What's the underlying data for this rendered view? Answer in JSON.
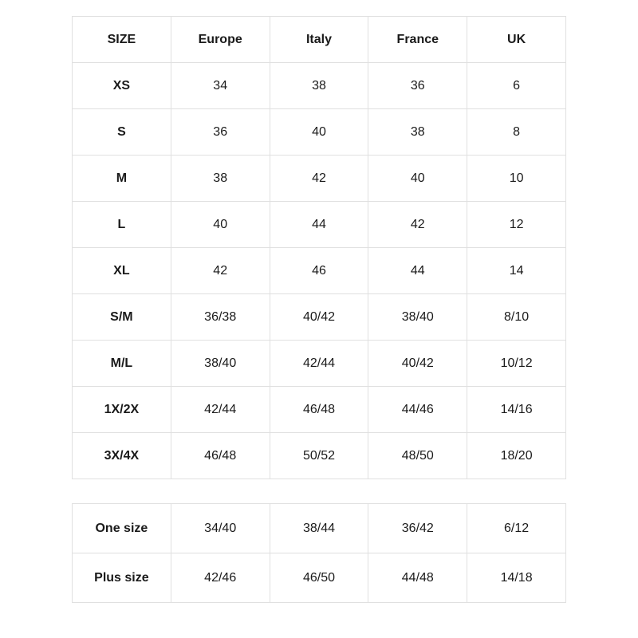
{
  "main_table": {
    "type": "table",
    "columns": [
      "SIZE",
      "Europe",
      "Italy",
      "France",
      "UK"
    ],
    "rows": [
      [
        "XS",
        "34",
        "38",
        "36",
        "6"
      ],
      [
        "S",
        "36",
        "40",
        "38",
        "8"
      ],
      [
        "M",
        "38",
        "42",
        "40",
        "10"
      ],
      [
        "L",
        "40",
        "44",
        "42",
        "12"
      ],
      [
        "XL",
        "42",
        "46",
        "44",
        "14"
      ],
      [
        "S/M",
        "36/38",
        "40/42",
        "38/40",
        "8/10"
      ],
      [
        "M/L",
        "38/40",
        "42/44",
        "40/42",
        "10/12"
      ],
      [
        "1X/2X",
        "42/44",
        "46/48",
        "44/46",
        "14/16"
      ],
      [
        "3X/4X",
        "46/48",
        "50/52",
        "48/50",
        "18/20"
      ]
    ],
    "border_color": "#e0e0e0",
    "background_color": "#ffffff",
    "text_color": "#1a1a1a",
    "font_size": 16,
    "header_font_weight": 700,
    "first_col_font_weight": 700,
    "num_columns": 5
  },
  "secondary_table": {
    "type": "table",
    "rows": [
      [
        "One size",
        "34/40",
        "38/44",
        "36/42",
        "6/12"
      ],
      [
        "Plus size",
        "42/46",
        "46/50",
        "44/48",
        "14/18"
      ]
    ],
    "border_color": "#e0e0e0",
    "background_color": "#ffffff",
    "text_color": "#1a1a1a",
    "font_size": 16,
    "first_col_font_weight": 700,
    "num_columns": 5
  }
}
